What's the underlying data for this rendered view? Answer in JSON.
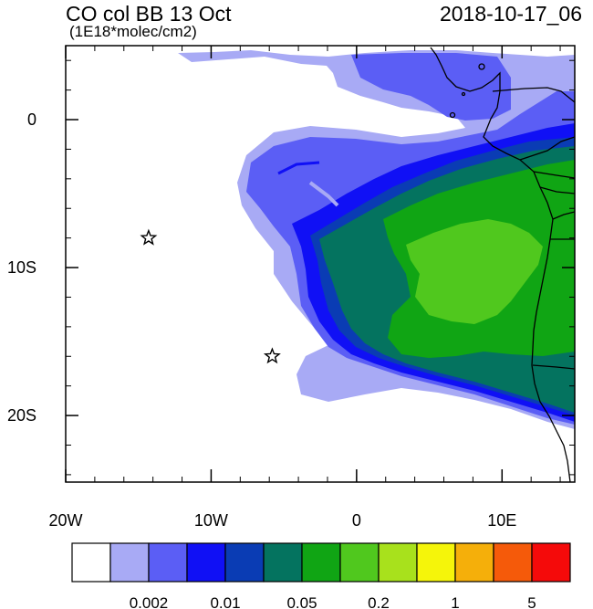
{
  "title_left": "CO col BB 13 Oct",
  "subtitle": "(1E18*molec/cm2)",
  "title_right": "2018-10-17_06",
  "map": {
    "lon_range": [
      -20,
      15
    ],
    "lat_range": [
      -24.5,
      5
    ],
    "x_ticks": [
      {
        "value": -20,
        "label": "20W"
      },
      {
        "value": -10,
        "label": "10W"
      },
      {
        "value": 0,
        "label": "0"
      },
      {
        "value": 10,
        "label": "10E"
      }
    ],
    "y_ticks": [
      {
        "value": 0,
        "label": "0"
      },
      {
        "value": -10,
        "label": "10S"
      },
      {
        "value": -20,
        "label": "20S"
      }
    ],
    "markers": [
      {
        "name": "star-marker-1",
        "lon": -14.3,
        "lat": -8.0,
        "symbol": "star"
      },
      {
        "name": "star-marker-2",
        "lon": -5.8,
        "lat": -16.0,
        "symbol": "star"
      }
    ]
  },
  "colorbar": {
    "colors": [
      "#ffffff",
      "#a8aaf5",
      "#5b5ef5",
      "#1010f5",
      "#0a3cb4",
      "#04735f",
      "#10a514",
      "#50c81e",
      "#a8e11c",
      "#f5f50a",
      "#f5af0a",
      "#f55a0a",
      "#f50a0a"
    ],
    "labels": [
      "0.002",
      "0.01",
      "0.05",
      "0.2",
      "1",
      "5"
    ],
    "label_after_box": [
      2,
      4,
      6,
      8,
      10,
      12
    ]
  }
}
